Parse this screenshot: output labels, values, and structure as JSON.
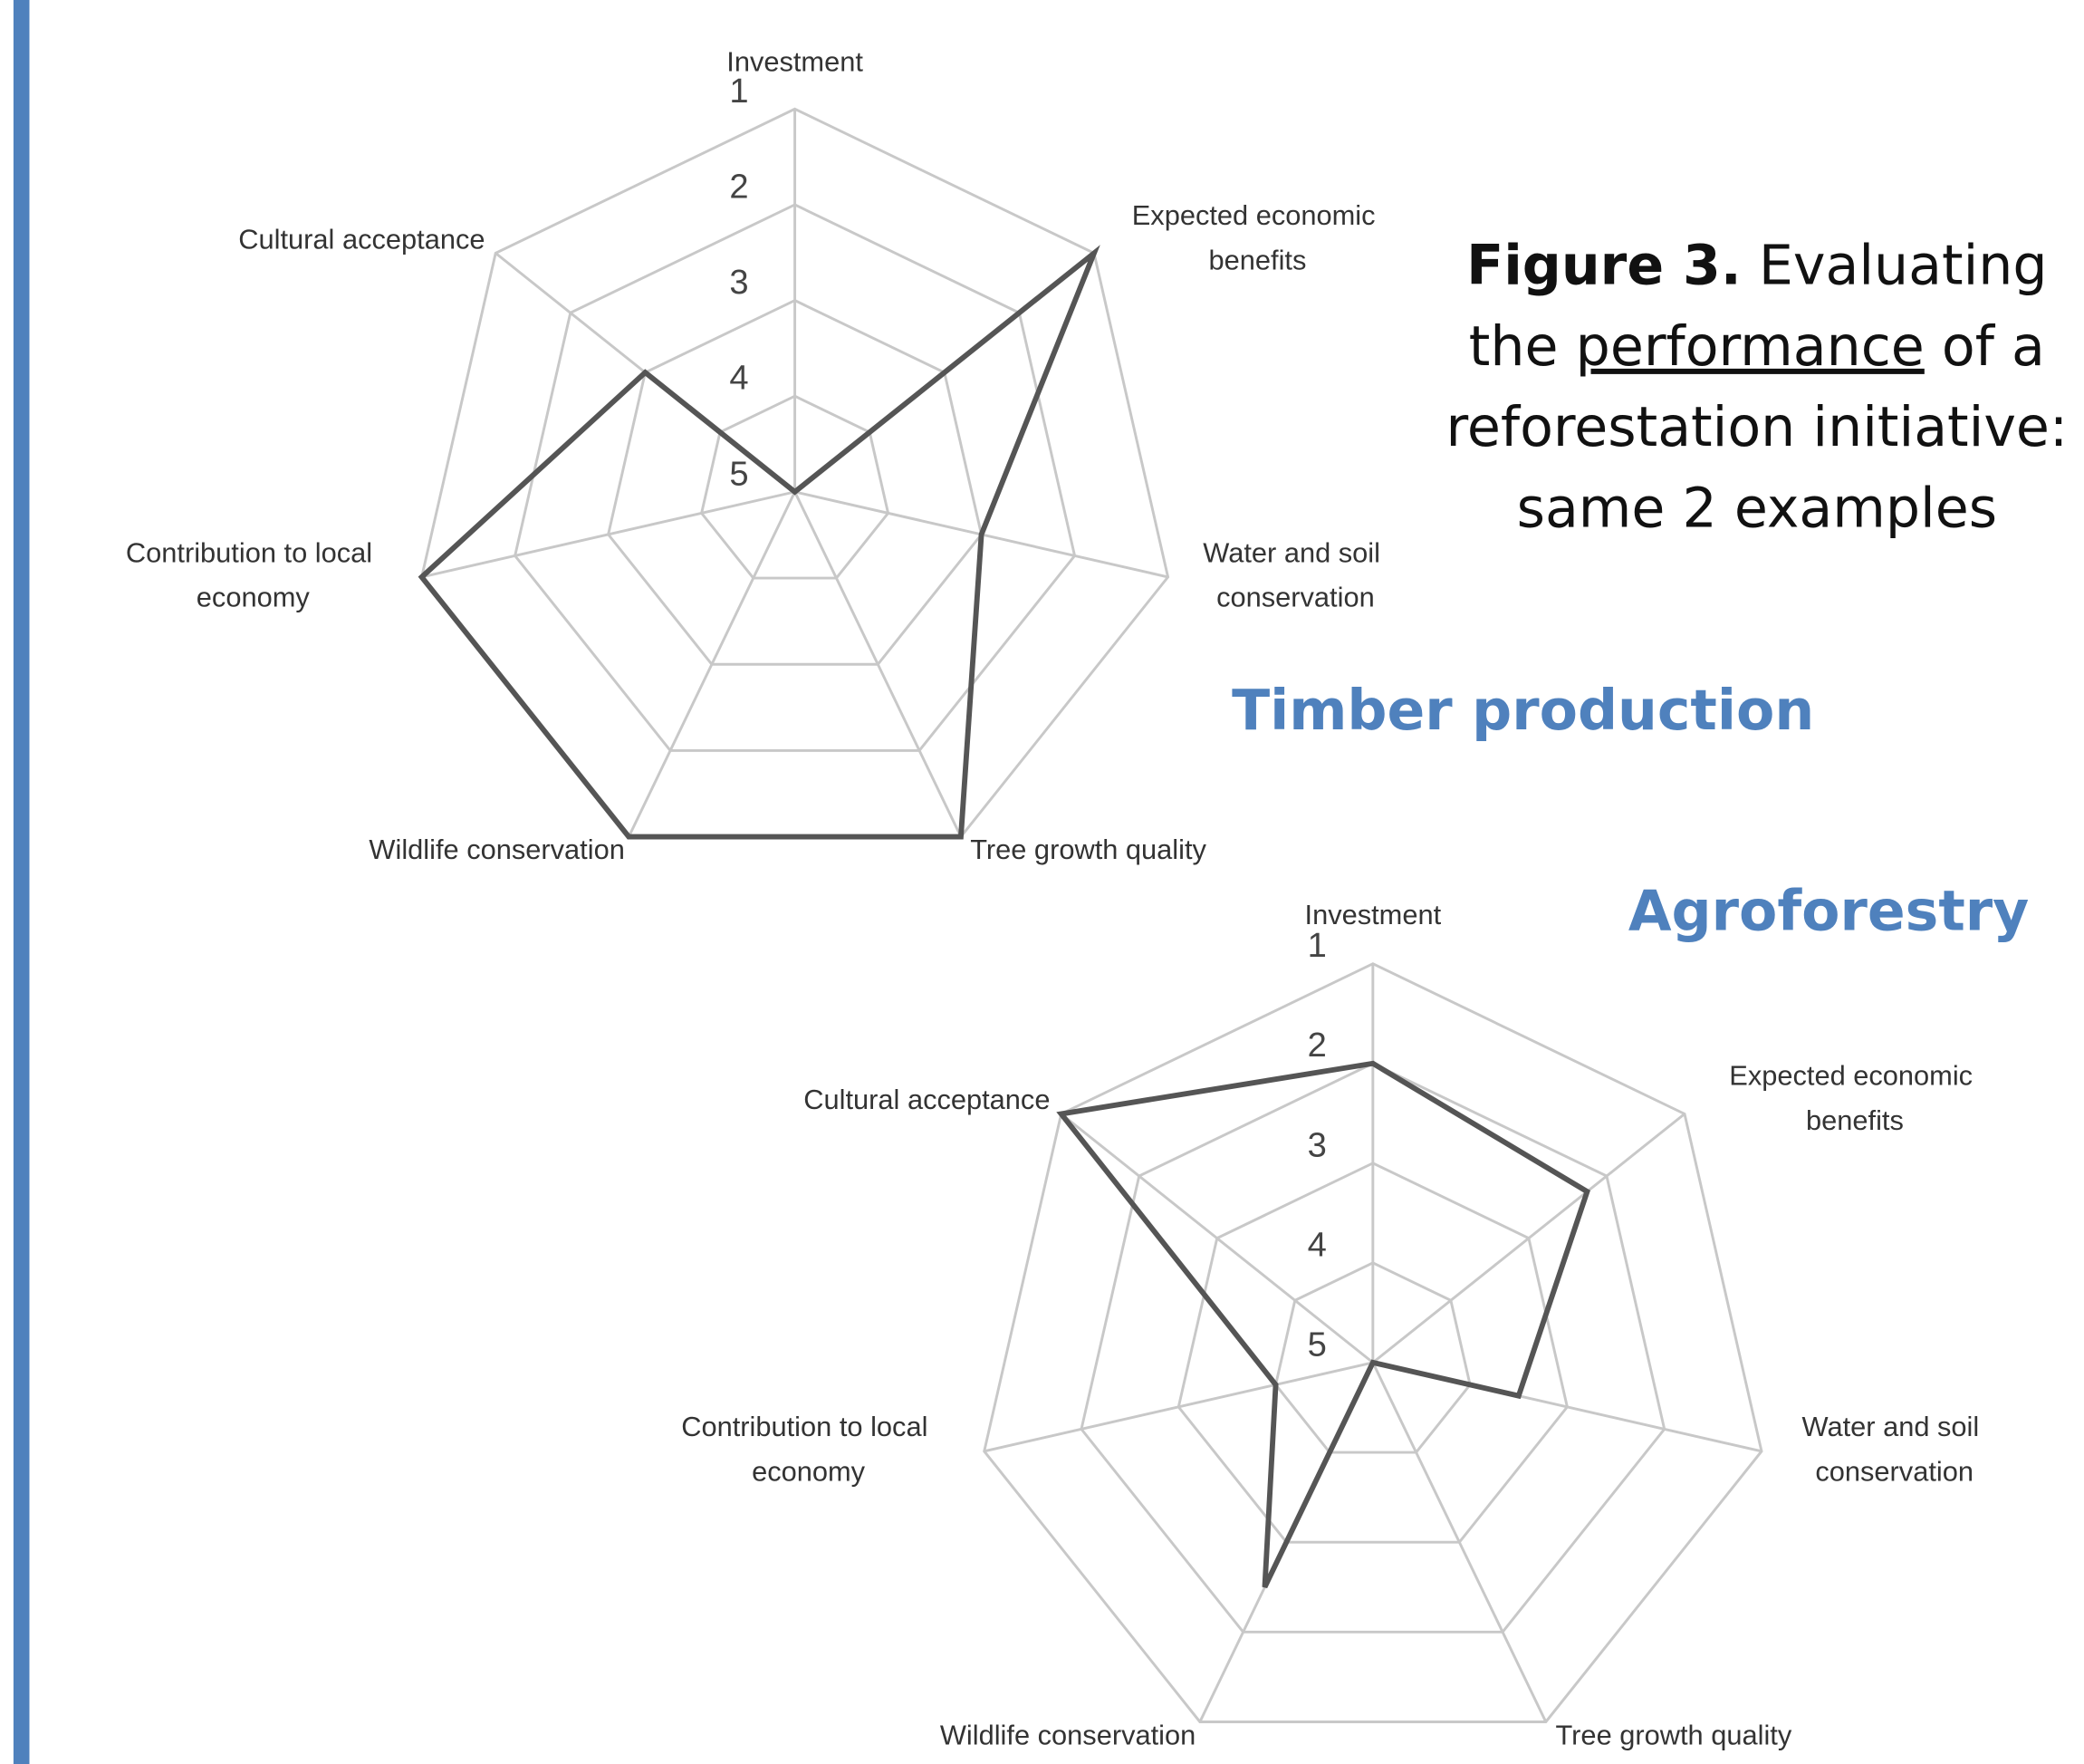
{
  "chart_data": [
    {
      "type": "radar",
      "title": "Timber production",
      "categories": [
        "Investment",
        "Expected economic benefits",
        "Water and soil conservation",
        "Tree growth quality",
        "Wildlife conservation",
        "Contribution to local economy",
        "Cultural acceptance"
      ],
      "values": [
        5,
        1,
        3,
        1,
        1,
        1,
        3
      ],
      "color": "#555555",
      "rlim": [
        5,
        1
      ],
      "rticks": [
        1,
        2,
        3,
        4,
        5
      ],
      "grid": true
    },
    {
      "type": "radar",
      "title": "Agroforestry",
      "categories": [
        "Investment",
        "Expected economic benefits",
        "Water and soil conservation",
        "Tree growth quality",
        "Wildlife conservation",
        "Contribution to local economy",
        "Cultural acceptance"
      ],
      "values": [
        2,
        2.25,
        3.5,
        5,
        2.5,
        4,
        1
      ],
      "color": "#555555",
      "rlim": [
        5,
        1
      ],
      "rticks": [
        1,
        2,
        3,
        4,
        5
      ],
      "grid": true
    }
  ],
  "caption": {
    "label": "Figure 3.",
    "text": [
      "Evaluating",
      "the",
      "performance",
      "of a",
      "reforestation initiative:",
      "same 2 examples"
    ]
  }
}
